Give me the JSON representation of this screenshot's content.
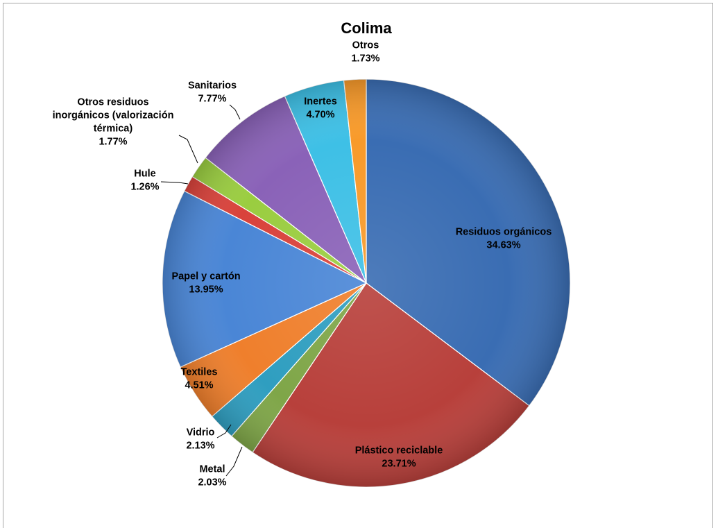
{
  "chart_data": {
    "type": "pie",
    "title": "Colima",
    "start_angle_deg": 0,
    "direction": "clockwise",
    "legend": "none",
    "slices": [
      {
        "name": "Residuos orgánicos",
        "label_lines": [
          "Residuos orgánicos"
        ],
        "value": 34.63,
        "display": "34.63%",
        "color": "#3a6db3"
      },
      {
        "name": "Plástico reciclable",
        "label_lines": [
          "Plástico reciclable"
        ],
        "value": 23.71,
        "display": "23.71%",
        "color": "#b8403b"
      },
      {
        "name": "Metal",
        "label_lines": [
          "Metal"
        ],
        "value": 2.03,
        "display": "2.03%",
        "color": "#7fa648"
      },
      {
        "name": "Vidrio",
        "label_lines": [
          "Vidrio"
        ],
        "value": 2.13,
        "display": "2.13%",
        "color": "#2f9ec0"
      },
      {
        "name": "Textiles",
        "label_lines": [
          "Textiles"
        ],
        "value": 4.51,
        "display": "4.51%",
        "color": "#ef7f2c"
      },
      {
        "name": "Papel y cartón",
        "label_lines": [
          "Papel y cartón"
        ],
        "value": 13.95,
        "display": "13.95%",
        "color": "#4a86d6"
      },
      {
        "name": "Hule",
        "label_lines": [
          "Hule"
        ],
        "value": 1.26,
        "display": "1.26%",
        "color": "#d9423b"
      },
      {
        "name": "Otros residuos inorgánicos (valorización térmica)",
        "label_lines": [
          "Otros residuos",
          "inorgánicos (valorización",
          "térmica)"
        ],
        "value": 1.77,
        "display": "1.77%",
        "color": "#9acd40"
      },
      {
        "name": "Sanitarios",
        "label_lines": [
          "Sanitarios"
        ],
        "value": 7.77,
        "display": "7.77%",
        "color": "#8a62b8"
      },
      {
        "name": "Inertes",
        "label_lines": [
          "Inertes"
        ],
        "value": 4.7,
        "display": "4.70%",
        "color": "#3ec0e6"
      },
      {
        "name": "Otros",
        "label_lines": [
          "Otros"
        ],
        "value": 1.73,
        "display": "1.73%",
        "color": "#f89a2a"
      }
    ]
  }
}
